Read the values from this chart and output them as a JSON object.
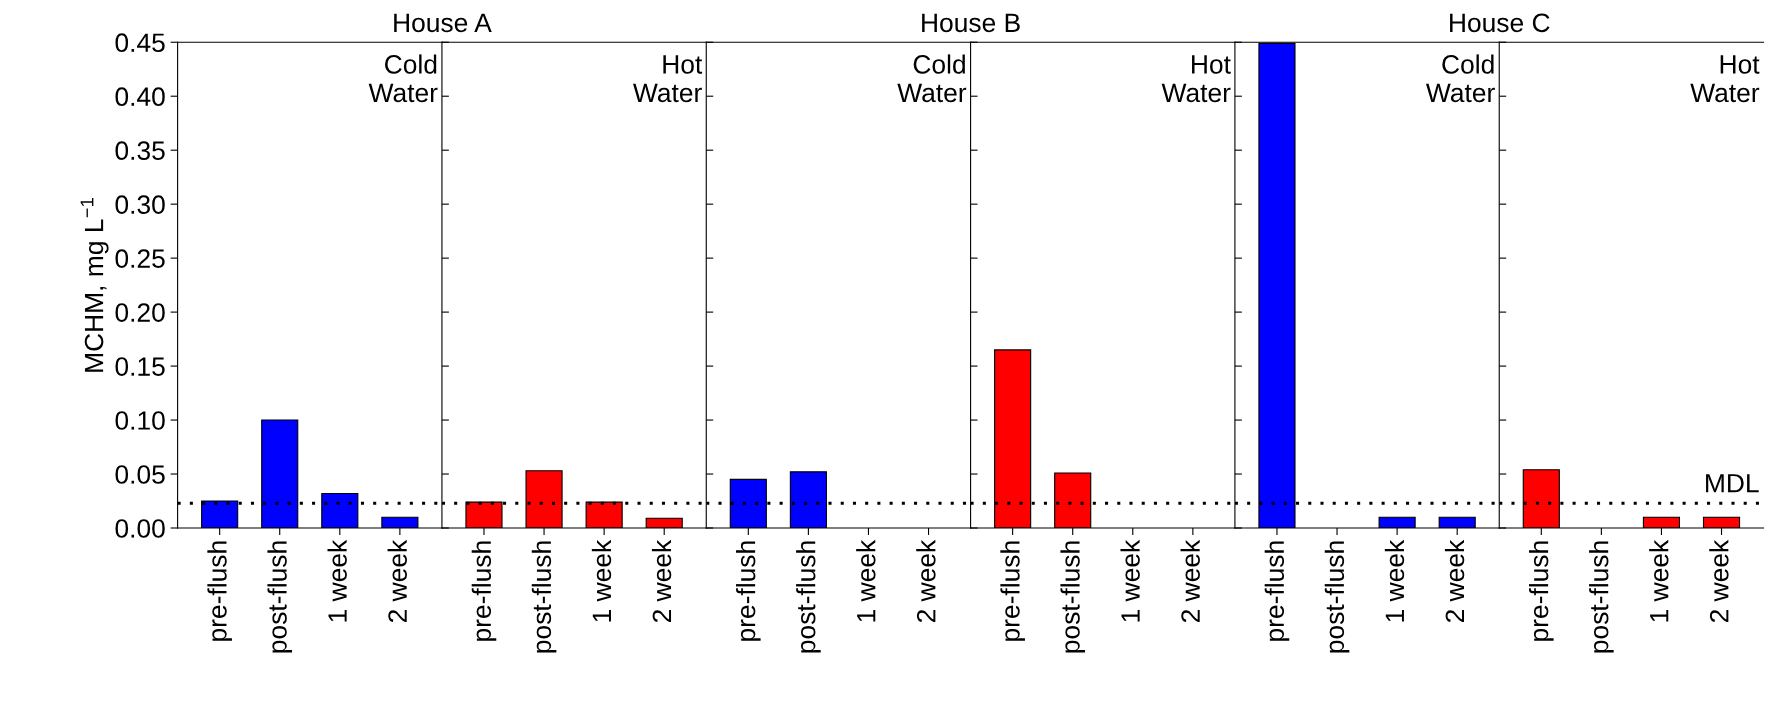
{
  "chart_data": [
    {
      "type": "bar",
      "title": "House A",
      "ylabel": "MCHM, mg L$^{−1}$",
      "annotations": [
        "Cold\nWater"
      ],
      "categories": [
        "pre-flush",
        "post-flush",
        "1 week",
        "2 week"
      ],
      "values": [
        0.025,
        0.1,
        0.032,
        0.01
      ],
      "color": "#0000ff",
      "ylim": [
        0,
        0.45
      ],
      "yticks": [
        {
          "value": 0,
          "label": "0.00"
        },
        {
          "value": 0.05,
          "label": "0.05"
        },
        {
          "value": 0.1,
          "label": "0.10"
        },
        {
          "value": 0.15,
          "label": "0.15"
        },
        {
          "value": 0.2,
          "label": "0.20"
        },
        {
          "value": 0.25,
          "label": "0.25"
        },
        {
          "value": 0.3,
          "label": "0.30"
        },
        {
          "value": 0.35,
          "label": "0.35"
        },
        {
          "value": 0.4,
          "label": "0.40"
        },
        {
          "value": 0.45,
          "label": "0.45"
        }
      ],
      "ref_lines": [
        {
          "axis": "y",
          "value": 0.023,
          "label": null,
          "line_style": "dotted",
          "color": "#000000"
        }
      ],
      "grid": false
    },
    {
      "type": "bar",
      "annotations": [
        "Hot\nWater"
      ],
      "categories": [
        "pre-flush",
        "post-flush",
        "1 week",
        "2 week"
      ],
      "values": [
        0.024,
        0.053,
        0.024,
        0.009
      ],
      "color": "#ff0000",
      "ylim": [
        0,
        0.45
      ],
      "tick_labels": "x",
      "ref_lines": [
        {
          "axis": "y",
          "value": 0.023,
          "label": null,
          "line_style": "dotted",
          "color": "#000000"
        }
      ],
      "grid": false
    },
    {
      "type": "bar",
      "title": "House B",
      "annotations": [
        "Cold\nWater"
      ],
      "categories": [
        "pre-flush",
        "post-flush",
        "1 week",
        "2 week"
      ],
      "values": [
        0.045,
        0.052,
        null,
        null
      ],
      "color": "#0000ff",
      "ylim": [
        0,
        0.45
      ],
      "tick_labels": "x",
      "ref_lines": [
        {
          "axis": "y",
          "value": 0.023,
          "label": null,
          "line_style": "dotted",
          "color": "#000000"
        }
      ],
      "grid": false
    },
    {
      "type": "bar",
      "annotations": [
        "Hot\nWater"
      ],
      "categories": [
        "pre-flush",
        "post-flush",
        "1 week",
        "2 week"
      ],
      "values": [
        0.165,
        0.051,
        null,
        null
      ],
      "color": "#ff0000",
      "ylim": [
        0,
        0.45
      ],
      "tick_labels": "x",
      "ref_lines": [
        {
          "axis": "y",
          "value": 0.023,
          "label": null,
          "line_style": "dotted",
          "color": "#000000"
        }
      ],
      "grid": false
    },
    {
      "type": "bar",
      "title": "House C",
      "annotations": [
        "Cold\nWater"
      ],
      "categories": [
        "pre-flush",
        "post-flush",
        "1 week",
        "2 week"
      ],
      "values": [
        0.449,
        null,
        0.01,
        0.01
      ],
      "color": "#0000ff",
      "ylim": [
        0,
        0.45
      ],
      "tick_labels": "x",
      "ref_lines": [
        {
          "axis": "y",
          "value": 0.023,
          "label": null,
          "line_style": "dotted",
          "color": "#000000"
        }
      ],
      "grid": false
    },
    {
      "type": "bar",
      "annotations": [
        "Hot\nWater"
      ],
      "categories": [
        "pre-flush",
        "post-flush",
        "1 week",
        "2 week"
      ],
      "values": [
        0.054,
        null,
        0.01,
        0.01
      ],
      "color": "#ff0000",
      "ylim": [
        0,
        0.45
      ],
      "tick_labels": "x",
      "ref_lines": [
        {
          "axis": "y",
          "value": 0.023,
          "label": "MDL",
          "line_style": "dotted",
          "color": "#000000"
        }
      ],
      "grid": false
    }
  ]
}
